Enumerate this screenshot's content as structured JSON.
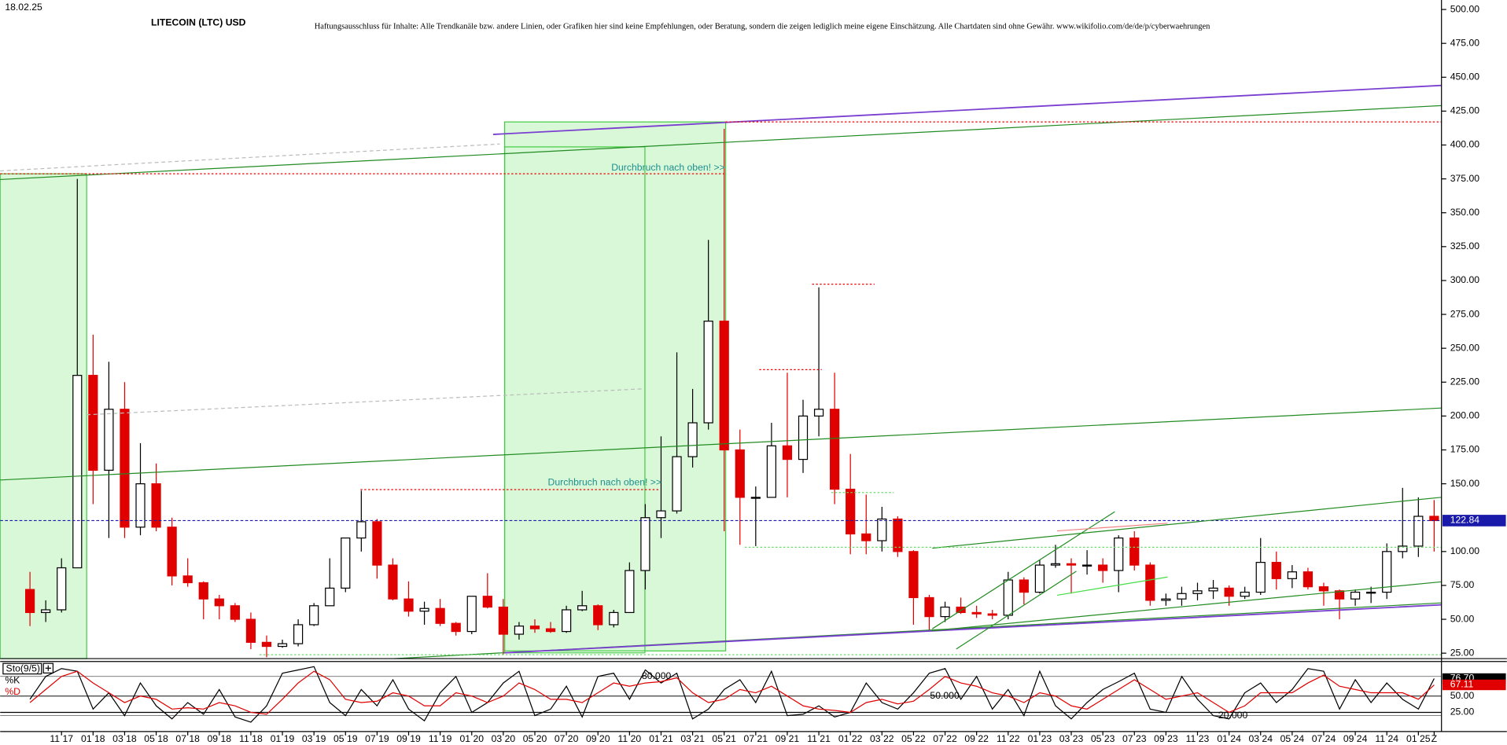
{
  "chart_data": [
    {
      "type": "candlestick",
      "title": "LITECOIN (LTC) USD",
      "date": "18.02.25",
      "disclaimer": "Haftungsausschluss für Inhalte: Alle Trendkanäle bzw. andere Linien, oder Grafiken hier sind keine Empfehlungen, oder Beratung, sondern die zeigen lediglich meine eigene Einschätzung. Alle Chartdaten sind ohne Gewähr.  www.wikifolio.com/de/de/p/cyberwaehrungen",
      "annotations": [
        "Durchbruch nach oben! >>",
        "Durchbruch nach oben! >>"
      ],
      "categories": [
        null,
        null,
        "11 17",
        null,
        "01 18",
        null,
        "03 18",
        null,
        "05 18",
        null,
        "07 18",
        null,
        "09 18",
        null,
        "11 18",
        null,
        "01 19",
        null,
        "03 19",
        null,
        "05 19",
        null,
        "07 19",
        null,
        "09 19",
        null,
        "11 19",
        null,
        "01 20",
        null,
        "03 20",
        null,
        "05 20",
        null,
        "07 20",
        null,
        "09 20",
        null,
        "11 20",
        null,
        "01 21",
        null,
        "03 21",
        null,
        "05 21",
        null,
        "07 21",
        null,
        "09 21",
        null,
        "11 21",
        null,
        "01 22",
        null,
        "03 22",
        null,
        "05 22",
        null,
        "07 22",
        null,
        "09 22",
        null,
        "11 22",
        null,
        "01 23",
        null,
        "03 23",
        null,
        "05 23",
        null,
        "07 23",
        null,
        "09 23",
        null,
        "11 23",
        null,
        "01 24",
        null,
        "03 24",
        null,
        "05 24",
        null,
        "07 24",
        null,
        "09 24",
        null,
        "11 24",
        null,
        "01 25",
        "Z"
      ],
      "open": [
        72,
        55,
        57,
        88,
        230,
        160,
        205,
        118,
        150,
        118,
        82,
        77,
        65,
        60,
        50,
        33,
        30,
        32,
        46,
        60,
        73,
        110,
        122,
        90,
        65,
        56,
        58,
        47,
        41,
        67,
        59,
        39,
        45,
        43,
        41,
        57,
        60,
        46,
        55,
        86,
        125,
        130,
        170,
        195,
        270,
        175,
        140,
        140,
        178,
        168,
        200,
        205,
        146,
        113,
        108,
        124,
        100,
        66,
        52,
        59,
        55,
        54,
        53,
        79,
        70,
        90,
        91,
        90,
        90,
        86,
        110,
        90,
        64,
        65,
        69,
        71,
        73,
        67,
        70,
        92,
        80,
        85,
        74,
        71,
        65,
        70,
        70,
        100,
        104,
        126
      ],
      "high": [
        85,
        64,
        95,
        375,
        260,
        240,
        225,
        180,
        165,
        125,
        95,
        78,
        68,
        62,
        55,
        38,
        35,
        50,
        62,
        95,
        110,
        145,
        124,
        95,
        78,
        63,
        65,
        48,
        67,
        84,
        65,
        48,
        50,
        48,
        60,
        71,
        61,
        57,
        92,
        135,
        185,
        247,
        220,
        330,
        412,
        190,
        148,
        195,
        232,
        212,
        295,
        232,
        172,
        142,
        133,
        126,
        101,
        68,
        63,
        66,
        60,
        57,
        85,
        81,
        94,
        105,
        95,
        101,
        95,
        112,
        115,
        92,
        69,
        74,
        77,
        79,
        75,
        74,
        110,
        100,
        90,
        88,
        77,
        72,
        72,
        74,
        106,
        147,
        140,
        138
      ],
      "low": [
        45,
        48,
        55,
        88,
        135,
        110,
        110,
        112,
        115,
        75,
        74,
        50,
        50,
        48,
        28,
        22,
        29,
        30,
        45,
        60,
        70,
        100,
        80,
        64,
        52,
        46,
        45,
        38,
        39,
        58,
        24,
        35,
        40,
        40,
        40,
        56,
        42,
        44,
        55,
        72,
        110,
        128,
        162,
        190,
        115,
        105,
        104,
        140,
        140,
        158,
        185,
        135,
        98,
        98,
        100,
        96,
        46,
        41,
        48,
        54,
        51,
        50,
        50,
        61,
        69,
        88,
        69,
        83,
        77,
        70,
        86,
        60,
        60,
        60,
        64,
        65,
        60,
        65,
        68,
        72,
        73,
        72,
        60,
        50,
        60,
        62,
        65,
        95,
        96,
        100
      ],
      "close": [
        55,
        57,
        88,
        230,
        160,
        205,
        118,
        150,
        118,
        82,
        77,
        65,
        60,
        50,
        33,
        30,
        32,
        46,
        60,
        73,
        110,
        122,
        90,
        65,
        56,
        58,
        47,
        41,
        67,
        59,
        39,
        45,
        43,
        41,
        57,
        60,
        46,
        55,
        86,
        125,
        130,
        170,
        195,
        270,
        175,
        140,
        140,
        178,
        168,
        200,
        205,
        146,
        113,
        108,
        124,
        100,
        66,
        52,
        59,
        55,
        54,
        53,
        79,
        70,
        90,
        91,
        90,
        90,
        86,
        110,
        90,
        64,
        65,
        69,
        71,
        73,
        67,
        70,
        92,
        80,
        85,
        74,
        71,
        65,
        70,
        70,
        100,
        104,
        126,
        122.84
      ],
      "up_color": "#000000",
      "down_color": "#e00000",
      "current_price": 122.84,
      "current_price_color": "#1a1aaa",
      "ylim": [
        21,
        507
      ],
      "yticks": [
        {
          "value": 25,
          "label": "25.00"
        },
        {
          "value": 50,
          "label": "50.00"
        },
        {
          "value": 75,
          "label": "75.00"
        },
        {
          "value": 100,
          "label": "100.00"
        },
        {
          "value": 150,
          "label": "150.00"
        },
        {
          "value": 175,
          "label": "175.00"
        },
        {
          "value": 200,
          "label": "200.00"
        },
        {
          "value": 225,
          "label": "225.00"
        },
        {
          "value": 250,
          "label": "250.00"
        },
        {
          "value": 275,
          "label": "275.00"
        },
        {
          "value": 300,
          "label": "300.00"
        },
        {
          "value": 325,
          "label": "325.00"
        },
        {
          "value": 350,
          "label": "350.00"
        },
        {
          "value": 375,
          "label": "375.00"
        },
        {
          "value": 400,
          "label": "400.00"
        },
        {
          "value": 425,
          "label": "425.00"
        },
        {
          "value": 450,
          "label": "450.00"
        },
        {
          "value": 475,
          "label": "475.00"
        },
        {
          "value": 500,
          "label": "500.00"
        }
      ],
      "grid": false
    },
    {
      "type": "line",
      "title": "Sto(9/5)",
      "series": [
        {
          "name": "%K",
          "color": "#000000",
          "value_label": "76.70",
          "values": [
            45,
            80,
            92,
            88,
            30,
            55,
            20,
            70,
            35,
            15,
            40,
            22,
            60,
            18,
            10,
            35,
            85,
            90,
            95,
            40,
            20,
            60,
            35,
            75,
            30,
            12,
            55,
            80,
            25,
            40,
            70,
            88,
            20,
            30,
            65,
            18,
            80,
            85,
            45,
            90,
            70,
            85,
            15,
            30,
            60,
            75,
            40,
            88,
            20,
            22,
            35,
            18,
            25,
            70,
            40,
            30,
            55,
            85,
            92,
            45,
            80,
            30,
            60,
            20,
            88,
            35,
            15,
            40,
            60,
            72,
            85,
            30,
            25,
            80,
            45,
            20,
            15,
            55,
            70,
            40,
            60,
            92,
            88,
            30,
            75,
            40,
            70,
            45,
            30,
            76.7
          ]
        },
        {
          "name": "%D",
          "color": "#e00000",
          "value_label": "67.11",
          "values": [
            40,
            60,
            80,
            88,
            70,
            55,
            40,
            50,
            45,
            30,
            32,
            30,
            40,
            35,
            25,
            22,
            45,
            70,
            88,
            75,
            45,
            40,
            42,
            55,
            50,
            35,
            35,
            55,
            50,
            40,
            50,
            70,
            60,
            45,
            45,
            40,
            55,
            70,
            65,
            70,
            72,
            78,
            55,
            40,
            45,
            60,
            55,
            65,
            50,
            35,
            30,
            28,
            25,
            40,
            45,
            38,
            42,
            60,
            80,
            70,
            65,
            55,
            50,
            40,
            55,
            50,
            35,
            30,
            45,
            60,
            75,
            60,
            45,
            50,
            55,
            40,
            25,
            35,
            55,
            55,
            55,
            70,
            82,
            65,
            60,
            55,
            55,
            55,
            45,
            67.11
          ]
        }
      ],
      "levels": [
        {
          "value": 80,
          "label": "80.000"
        },
        {
          "value": 50,
          "label": "50.000"
        },
        {
          "value": 20,
          "label": "20.000"
        }
      ],
      "ylim": [
        0,
        100
      ],
      "yticks": [
        {
          "value": 25,
          "label": "25.00"
        },
        {
          "value": 50,
          "label": "50.00"
        }
      ]
    }
  ]
}
